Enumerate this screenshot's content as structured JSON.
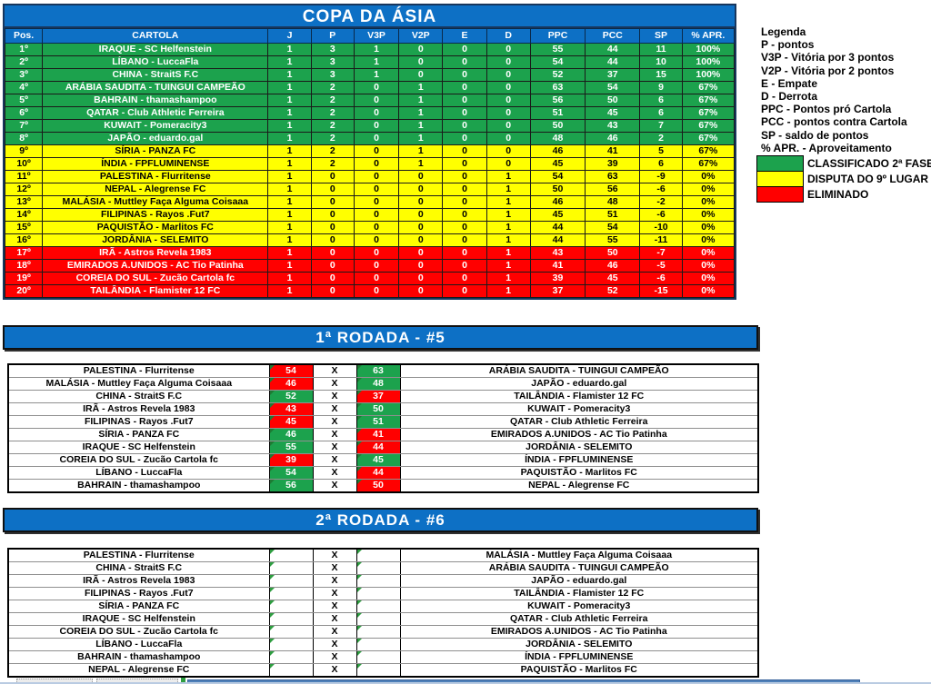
{
  "colors": {
    "header_blue": "#0D70C5",
    "navy_border": "#17365D",
    "green": "#1CA24D",
    "yellow": "#FFFF00",
    "red": "#FF0000"
  },
  "title": "COPA DA ÁSIA",
  "standings": {
    "columns": [
      "Pos.",
      "CARTOLA",
      "J",
      "P",
      "V3P",
      "V2P",
      "E",
      "D",
      "PPC",
      "PCC",
      "SP",
      "% APR."
    ],
    "rows": [
      {
        "pos": "1º",
        "team": "IRAQUE - SC Helfenstein",
        "j": "1",
        "p": "3",
        "v3p": "1",
        "v2p": "0",
        "e": "0",
        "d": "0",
        "ppc": "55",
        "pcc": "44",
        "sp": "11",
        "apr": "100%",
        "status": "g"
      },
      {
        "pos": "2º",
        "team": "LÍBANO - LuccaFla",
        "j": "1",
        "p": "3",
        "v3p": "1",
        "v2p": "0",
        "e": "0",
        "d": "0",
        "ppc": "54",
        "pcc": "44",
        "sp": "10",
        "apr": "100%",
        "status": "g"
      },
      {
        "pos": "3º",
        "team": "CHINA - StraitS F.C",
        "j": "1",
        "p": "3",
        "v3p": "1",
        "v2p": "0",
        "e": "0",
        "d": "0",
        "ppc": "52",
        "pcc": "37",
        "sp": "15",
        "apr": "100%",
        "status": "g"
      },
      {
        "pos": "4º",
        "team": "ARÁBIA SAUDITA - TUINGUI CAMPEÃO",
        "j": "1",
        "p": "2",
        "v3p": "0",
        "v2p": "1",
        "e": "0",
        "d": "0",
        "ppc": "63",
        "pcc": "54",
        "sp": "9",
        "apr": "67%",
        "status": "g"
      },
      {
        "pos": "5º",
        "team": "BAHRAIN - thamashampoo",
        "j": "1",
        "p": "2",
        "v3p": "0",
        "v2p": "1",
        "e": "0",
        "d": "0",
        "ppc": "56",
        "pcc": "50",
        "sp": "6",
        "apr": "67%",
        "status": "g"
      },
      {
        "pos": "6º",
        "team": "QATAR - Club Athletic Ferreira",
        "j": "1",
        "p": "2",
        "v3p": "0",
        "v2p": "1",
        "e": "0",
        "d": "0",
        "ppc": "51",
        "pcc": "45",
        "sp": "6",
        "apr": "67%",
        "status": "g"
      },
      {
        "pos": "7º",
        "team": "KUWAIT - Pomeracity3",
        "j": "1",
        "p": "2",
        "v3p": "0",
        "v2p": "1",
        "e": "0",
        "d": "0",
        "ppc": "50",
        "pcc": "43",
        "sp": "7",
        "apr": "67%",
        "status": "g"
      },
      {
        "pos": "8º",
        "team": "JAPÃO - eduardo.gal",
        "j": "1",
        "p": "2",
        "v3p": "0",
        "v2p": "1",
        "e": "0",
        "d": "0",
        "ppc": "48",
        "pcc": "46",
        "sp": "2",
        "apr": "67%",
        "status": "g"
      },
      {
        "pos": "9º",
        "team": "SÍRIA - PANZA FC",
        "j": "1",
        "p": "2",
        "v3p": "0",
        "v2p": "1",
        "e": "0",
        "d": "0",
        "ppc": "46",
        "pcc": "41",
        "sp": "5",
        "apr": "67%",
        "status": "y"
      },
      {
        "pos": "10º",
        "team": "ÍNDIA - FPFLUMINENSE",
        "j": "1",
        "p": "2",
        "v3p": "0",
        "v2p": "1",
        "e": "0",
        "d": "0",
        "ppc": "45",
        "pcc": "39",
        "sp": "6",
        "apr": "67%",
        "status": "y"
      },
      {
        "pos": "11º",
        "team": "PALESTINA - Flurritense",
        "j": "1",
        "p": "0",
        "v3p": "0",
        "v2p": "0",
        "e": "0",
        "d": "1",
        "ppc": "54",
        "pcc": "63",
        "sp": "-9",
        "apr": "0%",
        "status": "y"
      },
      {
        "pos": "12º",
        "team": "NEPAL - Alegrense FC",
        "j": "1",
        "p": "0",
        "v3p": "0",
        "v2p": "0",
        "e": "0",
        "d": "1",
        "ppc": "50",
        "pcc": "56",
        "sp": "-6",
        "apr": "0%",
        "status": "y"
      },
      {
        "pos": "13º",
        "team": "MALÁSIA - Muttley Faça Alguma Coisaaa",
        "j": "1",
        "p": "0",
        "v3p": "0",
        "v2p": "0",
        "e": "0",
        "d": "1",
        "ppc": "46",
        "pcc": "48",
        "sp": "-2",
        "apr": "0%",
        "status": "y"
      },
      {
        "pos": "14º",
        "team": "FILIPINAS - Rayos .Fut7",
        "j": "1",
        "p": "0",
        "v3p": "0",
        "v2p": "0",
        "e": "0",
        "d": "1",
        "ppc": "45",
        "pcc": "51",
        "sp": "-6",
        "apr": "0%",
        "status": "y"
      },
      {
        "pos": "15º",
        "team": "PAQUISTÃO - Marlitos FC",
        "j": "1",
        "p": "0",
        "v3p": "0",
        "v2p": "0",
        "e": "0",
        "d": "1",
        "ppc": "44",
        "pcc": "54",
        "sp": "-10",
        "apr": "0%",
        "status": "y"
      },
      {
        "pos": "16º",
        "team": "JORDÂNIA - SELEMITO",
        "j": "1",
        "p": "0",
        "v3p": "0",
        "v2p": "0",
        "e": "0",
        "d": "1",
        "ppc": "44",
        "pcc": "55",
        "sp": "-11",
        "apr": "0%",
        "status": "y"
      },
      {
        "pos": "17º",
        "team": "IRÃ - Astros Revela 1983",
        "j": "1",
        "p": "0",
        "v3p": "0",
        "v2p": "0",
        "e": "0",
        "d": "1",
        "ppc": "43",
        "pcc": "50",
        "sp": "-7",
        "apr": "0%",
        "status": "r"
      },
      {
        "pos": "18º",
        "team": "EMIRADOS A.UNIDOS - AC Tio Patinha",
        "j": "1",
        "p": "0",
        "v3p": "0",
        "v2p": "0",
        "e": "0",
        "d": "1",
        "ppc": "41",
        "pcc": "46",
        "sp": "-5",
        "apr": "0%",
        "status": "r"
      },
      {
        "pos": "19º",
        "team": "COREIA DO SUL - Zucão Cartola fc",
        "j": "1",
        "p": "0",
        "v3p": "0",
        "v2p": "0",
        "e": "0",
        "d": "1",
        "ppc": "39",
        "pcc": "45",
        "sp": "-6",
        "apr": "0%",
        "status": "r"
      },
      {
        "pos": "20º",
        "team": "TAILÂNDIA - Flamister 12 FC",
        "j": "1",
        "p": "0",
        "v3p": "0",
        "v2p": "0",
        "e": "0",
        "d": "1",
        "ppc": "37",
        "pcc": "52",
        "sp": "-15",
        "apr": "0%",
        "status": "r"
      }
    ]
  },
  "legend": {
    "title": "Legenda",
    "items": [
      "P - pontos",
      "V3P - Vitória por 3 pontos",
      "V2P - Vitória por 2 pontos",
      "E - Empate",
      "D - Derrota",
      "PPC - Pontos pró Cartola",
      "PCC - pontos contra Cartola",
      "SP - saldo de pontos",
      "% APR. - Aproveitamento"
    ],
    "statuses": [
      {
        "color": "#1CA24D",
        "label": "CLASSIFICADO 2ª FASE"
      },
      {
        "color": "#FFFF00",
        "label": "DISPUTA DO 9º LUGAR"
      },
      {
        "color": "#FF0000",
        "label": "ELIMINADO"
      }
    ]
  },
  "rounds": [
    {
      "title": "1ª RODADA - #5",
      "separator": "X",
      "matches": [
        {
          "home": "PALESTINA - Flurritense",
          "home_score": "54",
          "home_color": "red",
          "away_score": "63",
          "away_color": "green",
          "away": "ARÁBIA SAUDITA - TUINGUI CAMPEÃO"
        },
        {
          "home": "MALÁSIA - Muttley Faça Alguma Coisaaa",
          "home_score": "46",
          "home_color": "red",
          "away_score": "48",
          "away_color": "green",
          "away": "JAPÃO - eduardo.gal"
        },
        {
          "home": "CHINA - StraitS F.C",
          "home_score": "52",
          "home_color": "green",
          "away_score": "37",
          "away_color": "red",
          "away": "TAILÂNDIA - Flamister 12 FC"
        },
        {
          "home": "IRÃ - Astros Revela 1983",
          "home_score": "43",
          "home_color": "red",
          "away_score": "50",
          "away_color": "green",
          "away": "KUWAIT - Pomeracity3"
        },
        {
          "home": "FILIPINAS - Rayos .Fut7",
          "home_score": "45",
          "home_color": "red",
          "away_score": "51",
          "away_color": "green",
          "away": "QATAR - Club Athletic Ferreira"
        },
        {
          "home": "SÍRIA - PANZA FC",
          "home_score": "46",
          "home_color": "green",
          "away_score": "41",
          "away_color": "red",
          "away": "EMIRADOS A.UNIDOS - AC Tio Patinha"
        },
        {
          "home": "IRAQUE - SC Helfenstein",
          "home_score": "55",
          "home_color": "green",
          "away_score": "44",
          "away_color": "red",
          "away": "JORDÂNIA - SELEMITO"
        },
        {
          "home": "COREIA DO SUL - Zucão Cartola fc",
          "home_score": "39",
          "home_color": "red",
          "away_score": "45",
          "away_color": "green",
          "away": "ÍNDIA - FPFLUMINENSE"
        },
        {
          "home": "LÍBANO - LuccaFla",
          "home_score": "54",
          "home_color": "green",
          "away_score": "44",
          "away_color": "red",
          "away": "PAQUISTÃO - Marlitos FC"
        },
        {
          "home": "BAHRAIN - thamashampoo",
          "home_score": "56",
          "home_color": "green",
          "away_score": "50",
          "away_color": "red",
          "away": "NEPAL - Alegrense FC"
        }
      ]
    },
    {
      "title": "2ª RODADA - #6",
      "separator": "X",
      "matches": [
        {
          "home": "PALESTINA - Flurritense",
          "home_score": "",
          "home_color": "none",
          "away_score": "",
          "away_color": "none",
          "away": "MALÁSIA - Muttley Faça Alguma Coisaaa"
        },
        {
          "home": "CHINA - StraitS F.C",
          "home_score": "",
          "home_color": "none",
          "away_score": "",
          "away_color": "none",
          "away": "ARÁBIA SAUDITA - TUINGUI CAMPEÃO"
        },
        {
          "home": "IRÃ - Astros Revela 1983",
          "home_score": "",
          "home_color": "none",
          "away_score": "",
          "away_color": "none",
          "away": "JAPÃO - eduardo.gal"
        },
        {
          "home": "FILIPINAS - Rayos .Fut7",
          "home_score": "",
          "home_color": "none",
          "away_score": "",
          "away_color": "none",
          "away": "TAILÂNDIA - Flamister 12 FC"
        },
        {
          "home": "SÍRIA - PANZA FC",
          "home_score": "",
          "home_color": "none",
          "away_score": "",
          "away_color": "none",
          "away": "KUWAIT - Pomeracity3"
        },
        {
          "home": "IRAQUE - SC Helfenstein",
          "home_score": "",
          "home_color": "none",
          "away_score": "",
          "away_color": "none",
          "away": "QATAR - Club Athletic Ferreira"
        },
        {
          "home": "COREIA DO SUL - Zucão Cartola fc",
          "home_score": "",
          "home_color": "none",
          "away_score": "",
          "away_color": "none",
          "away": "EMIRADOS A.UNIDOS - AC Tio Patinha"
        },
        {
          "home": "LÍBANO - LuccaFla",
          "home_score": "",
          "home_color": "none",
          "away_score": "",
          "away_color": "none",
          "away": "JORDÂNIA - SELEMITO"
        },
        {
          "home": "BAHRAIN - thamashampoo",
          "home_score": "",
          "home_color": "none",
          "away_score": "",
          "away_color": "none",
          "away": "ÍNDIA - FPFLUMINENSE"
        },
        {
          "home": "NEPAL - Alegrense FC",
          "home_score": "",
          "home_color": "none",
          "away_score": "",
          "away_color": "none",
          "away": "PAQUISTÃO - Marlitos FC"
        }
      ]
    }
  ]
}
